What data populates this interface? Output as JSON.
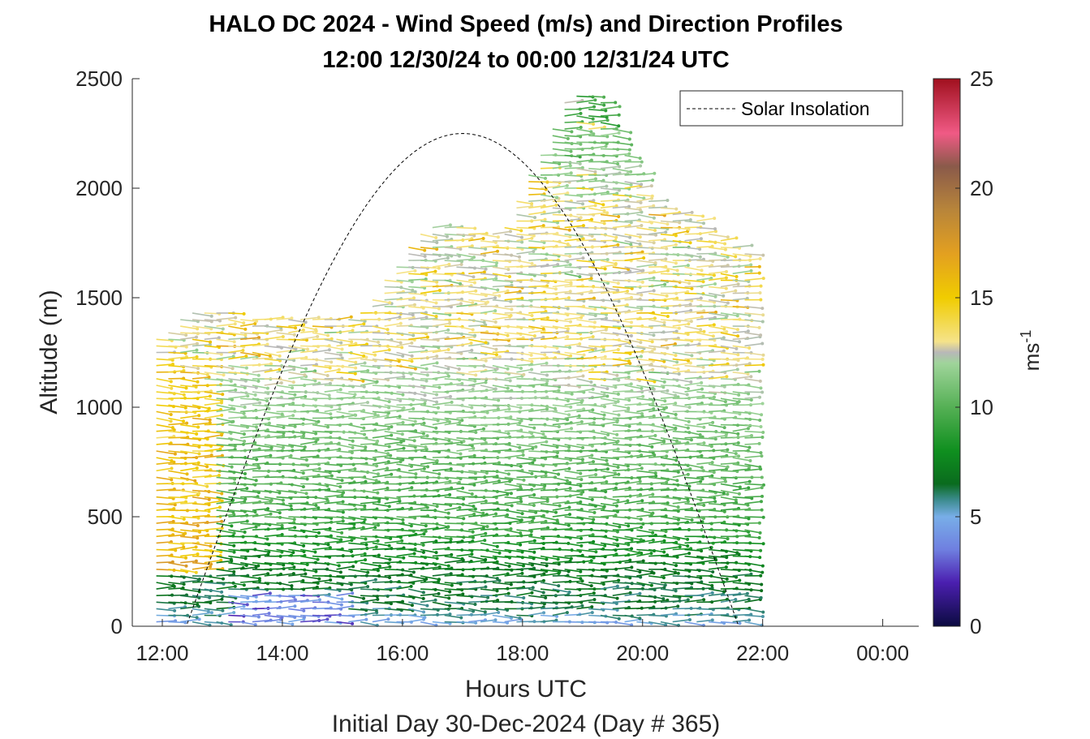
{
  "chart_data": {
    "type": "wind-barb-profile",
    "title": "HALO DC 2024 - Wind Speed (m/s) and Direction Profiles",
    "subtitle": "12:00 12/30/24 to 00:00 12/31/24  UTC",
    "xlabel": "Hours UTC",
    "xlabel2": "Initial Day 30-Dec-2024 (Day # 365)",
    "ylabel": "Altitude (m)",
    "x_range_hours": [
      11.5,
      24.6
    ],
    "x_ticks": [
      {
        "hour": 12,
        "label": "12:00"
      },
      {
        "hour": 14,
        "label": "14:00"
      },
      {
        "hour": 16,
        "label": "16:00"
      },
      {
        "hour": 18,
        "label": "18:00"
      },
      {
        "hour": 20,
        "label": "20:00"
      },
      {
        "hour": 22,
        "label": "22:00"
      },
      {
        "hour": 24,
        "label": "00:00"
      }
    ],
    "ylim": [
      0,
      2500
    ],
    "y_ticks": [
      0,
      500,
      1000,
      1500,
      2000,
      2500
    ],
    "colorbar": {
      "label": "ms",
      "label_exponent": "-1",
      "range": [
        0,
        25
      ],
      "ticks": [
        0,
        5,
        10,
        15,
        20,
        25
      ],
      "stops": [
        {
          "v": 0,
          "c": "#0b0b40"
        },
        {
          "v": 2,
          "c": "#4b1fb0"
        },
        {
          "v": 3.5,
          "c": "#6f7fe0"
        },
        {
          "v": 5,
          "c": "#78aee8"
        },
        {
          "v": 5.8,
          "c": "#3a8a8a"
        },
        {
          "v": 6.5,
          "c": "#0a6b1e"
        },
        {
          "v": 8,
          "c": "#0f8f1f"
        },
        {
          "v": 10,
          "c": "#55b055"
        },
        {
          "v": 12,
          "c": "#9fd49a"
        },
        {
          "v": 12.5,
          "c": "#b8b8b8"
        },
        {
          "v": 13,
          "c": "#f5e38a"
        },
        {
          "v": 15,
          "c": "#f0cc00"
        },
        {
          "v": 17,
          "c": "#e3a020"
        },
        {
          "v": 19,
          "c": "#b8853a"
        },
        {
          "v": 21,
          "c": "#8a5a4a"
        },
        {
          "v": 22.5,
          "c": "#f05a85"
        },
        {
          "v": 25,
          "c": "#a0101e"
        }
      ]
    },
    "legend": {
      "label": "Solar Insolation",
      "position": "top-right"
    },
    "solar_insolation": {
      "start_hour": 12.4,
      "peak_hour": 17.0,
      "end_hour": 21.6,
      "peak_altitude_equiv": 2250
    },
    "profiles": {
      "start_hour": 11.9,
      "end_hour": 21.8,
      "interval_hours": 0.2,
      "altitude_step_m": 30,
      "max_altitude_by_time": [
        {
          "h": 11.9,
          "top": 1320
        },
        {
          "h": 12.5,
          "top": 1460
        },
        {
          "h": 13.6,
          "top": 1410
        },
        {
          "h": 15.2,
          "top": 1400
        },
        {
          "h": 16.4,
          "top": 1850
        },
        {
          "h": 17.6,
          "top": 1790
        },
        {
          "h": 18.8,
          "top": 2450
        },
        {
          "h": 19.3,
          "top": 2400
        },
        {
          "h": 20.1,
          "top": 1950
        },
        {
          "h": 20.8,
          "top": 1870
        },
        {
          "h": 21.8,
          "top": 1700
        }
      ],
      "speed_by_altitude": [
        {
          "alt": 0,
          "spd": 4.8
        },
        {
          "alt": 80,
          "spd": 6.0
        },
        {
          "alt": 250,
          "spd": 7.0
        },
        {
          "alt": 500,
          "spd": 9.5
        },
        {
          "alt": 800,
          "spd": 10.5
        },
        {
          "alt": 1100,
          "spd": 12.0
        },
        {
          "alt": 1300,
          "spd": 13.0
        },
        {
          "alt": 1600,
          "spd": 12.5
        },
        {
          "alt": 1900,
          "spd": 13.0
        },
        {
          "alt": 2450,
          "spd": 9.0
        }
      ],
      "early_high_speed_window_hours": [
        11.9,
        12.8
      ],
      "early_high_speed_ms": 16.5,
      "low_speed_surface_window_hours": [
        13.0,
        15.0
      ],
      "low_speed_surface_ms": 2.5
    }
  }
}
